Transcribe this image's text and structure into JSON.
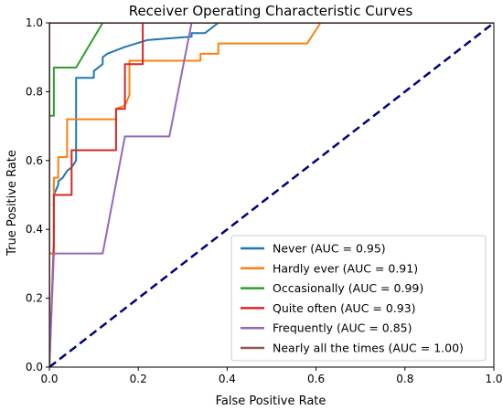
{
  "chart_data": {
    "type": "line",
    "title": "Receiver Operating Characteristic Curves",
    "xlabel": "False Positive Rate",
    "ylabel": "True Positive Rate",
    "xlim": [
      0.0,
      1.0
    ],
    "ylim": [
      0.0,
      1.0
    ],
    "xticks": [
      0.0,
      0.2,
      0.4,
      0.6,
      0.8,
      1.0
    ],
    "yticks": [
      0.0,
      0.2,
      0.4,
      0.6,
      0.8,
      1.0
    ],
    "xtick_labels": [
      "0.0",
      "0.2",
      "0.4",
      "0.6",
      "0.8",
      "1.0"
    ],
    "ytick_labels": [
      "0.0",
      "0.2",
      "0.4",
      "0.6",
      "0.8",
      "1.0"
    ],
    "grid": false,
    "legend_position": "lower-right",
    "series": [
      {
        "name": "Never (AUC = 0.95)",
        "color": "#1f77b4",
        "x": [
          0,
          0,
          0.01,
          0.01,
          0.02,
          0.02,
          0.03,
          0.04,
          0.05,
          0.06,
          0.06,
          0.1,
          0.1,
          0.12,
          0.12,
          0.13,
          0.13,
          0.17,
          0.17,
          0.22,
          0.22,
          0.32,
          0.32,
          0.35,
          0.36,
          0.38,
          1.0
        ],
        "y": [
          0,
          0.33,
          0.33,
          0.5,
          0.53,
          0.54,
          0.55,
          0.57,
          0.58,
          0.6,
          0.84,
          0.84,
          0.86,
          0.88,
          0.9,
          0.91,
          0.91,
          0.93,
          0.93,
          0.95,
          0.95,
          0.96,
          0.97,
          0.97,
          0.98,
          1.0,
          1.0
        ]
      },
      {
        "name": "Hardly ever (AUC = 0.91)",
        "color": "#ff7f0e",
        "x": [
          0,
          0,
          0.01,
          0.01,
          0.02,
          0.02,
          0.03,
          0.04,
          0.04,
          0.15,
          0.15,
          0.17,
          0.18,
          0.18,
          0.34,
          0.34,
          0.38,
          0.38,
          0.58,
          0.61,
          1.0
        ],
        "y": [
          0,
          0.33,
          0.33,
          0.55,
          0.55,
          0.61,
          0.61,
          0.61,
          0.72,
          0.72,
          0.75,
          0.76,
          0.79,
          0.89,
          0.89,
          0.91,
          0.91,
          0.94,
          0.94,
          1.0,
          1.0
        ]
      },
      {
        "name": "Occasionally (AUC = 0.99)",
        "color": "#2ca02c",
        "x": [
          0,
          0,
          0.01,
          0.01,
          0.06,
          0.12,
          1.0
        ],
        "y": [
          0,
          0.73,
          0.73,
          0.87,
          0.87,
          1.0,
          1.0
        ]
      },
      {
        "name": "Quite often (AUC = 0.93)",
        "color": "#d62728",
        "x": [
          0,
          0.01,
          0.01,
          0.02,
          0.02,
          0.05,
          0.05,
          0.08,
          0.08,
          0.15,
          0.15,
          0.17,
          0.17,
          0.21,
          0.21,
          1.0
        ],
        "y": [
          0,
          0.37,
          0.5,
          0.5,
          0.5,
          0.5,
          0.63,
          0.63,
          0.63,
          0.63,
          0.75,
          0.75,
          0.88,
          0.88,
          1.0,
          1.0
        ]
      },
      {
        "name": "Frequently (AUC = 0.85)",
        "color": "#9467bd",
        "x": [
          0,
          0.01,
          0.01,
          0.02,
          0.12,
          0.17,
          0.17,
          0.27,
          0.32,
          0.32,
          1.0
        ],
        "y": [
          0,
          0.33,
          0.33,
          0.33,
          0.33,
          0.67,
          0.67,
          0.67,
          1.0,
          1.0,
          1.0
        ]
      },
      {
        "name": "Nearly all the times (AUC = 1.00)",
        "color": "#8c564b",
        "x": [
          0,
          0,
          1.0
        ],
        "y": [
          0,
          1.0,
          1.0
        ]
      }
    ],
    "reference_line": {
      "x": [
        0,
        1
      ],
      "y": [
        0,
        1
      ],
      "color": "#000080",
      "style": "dashed"
    }
  }
}
